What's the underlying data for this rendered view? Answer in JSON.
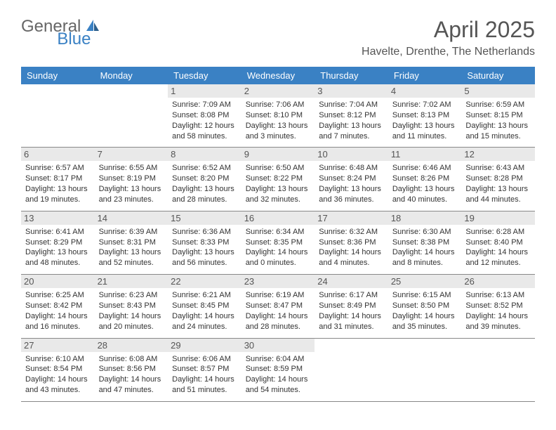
{
  "logo": {
    "general": "General",
    "blue": "Blue"
  },
  "title": "April 2025",
  "location": "Havelte, Drenthe, The Netherlands",
  "colors": {
    "header_bg": "#3a81c4",
    "header_fg": "#ffffff",
    "daynum_bg": "#e9e9e9",
    "text": "#333333",
    "title": "#555555",
    "row_border": "#888888"
  },
  "dow": [
    "Sunday",
    "Monday",
    "Tuesday",
    "Wednesday",
    "Thursday",
    "Friday",
    "Saturday"
  ],
  "weeks": [
    [
      {
        "n": "",
        "sr": "",
        "ss": "",
        "dl": ""
      },
      {
        "n": "",
        "sr": "",
        "ss": "",
        "dl": ""
      },
      {
        "n": "1",
        "sr": "Sunrise: 7:09 AM",
        "ss": "Sunset: 8:08 PM",
        "dl": "Daylight: 12 hours and 58 minutes."
      },
      {
        "n": "2",
        "sr": "Sunrise: 7:06 AM",
        "ss": "Sunset: 8:10 PM",
        "dl": "Daylight: 13 hours and 3 minutes."
      },
      {
        "n": "3",
        "sr": "Sunrise: 7:04 AM",
        "ss": "Sunset: 8:12 PM",
        "dl": "Daylight: 13 hours and 7 minutes."
      },
      {
        "n": "4",
        "sr": "Sunrise: 7:02 AM",
        "ss": "Sunset: 8:13 PM",
        "dl": "Daylight: 13 hours and 11 minutes."
      },
      {
        "n": "5",
        "sr": "Sunrise: 6:59 AM",
        "ss": "Sunset: 8:15 PM",
        "dl": "Daylight: 13 hours and 15 minutes."
      }
    ],
    [
      {
        "n": "6",
        "sr": "Sunrise: 6:57 AM",
        "ss": "Sunset: 8:17 PM",
        "dl": "Daylight: 13 hours and 19 minutes."
      },
      {
        "n": "7",
        "sr": "Sunrise: 6:55 AM",
        "ss": "Sunset: 8:19 PM",
        "dl": "Daylight: 13 hours and 23 minutes."
      },
      {
        "n": "8",
        "sr": "Sunrise: 6:52 AM",
        "ss": "Sunset: 8:20 PM",
        "dl": "Daylight: 13 hours and 28 minutes."
      },
      {
        "n": "9",
        "sr": "Sunrise: 6:50 AM",
        "ss": "Sunset: 8:22 PM",
        "dl": "Daylight: 13 hours and 32 minutes."
      },
      {
        "n": "10",
        "sr": "Sunrise: 6:48 AM",
        "ss": "Sunset: 8:24 PM",
        "dl": "Daylight: 13 hours and 36 minutes."
      },
      {
        "n": "11",
        "sr": "Sunrise: 6:46 AM",
        "ss": "Sunset: 8:26 PM",
        "dl": "Daylight: 13 hours and 40 minutes."
      },
      {
        "n": "12",
        "sr": "Sunrise: 6:43 AM",
        "ss": "Sunset: 8:28 PM",
        "dl": "Daylight: 13 hours and 44 minutes."
      }
    ],
    [
      {
        "n": "13",
        "sr": "Sunrise: 6:41 AM",
        "ss": "Sunset: 8:29 PM",
        "dl": "Daylight: 13 hours and 48 minutes."
      },
      {
        "n": "14",
        "sr": "Sunrise: 6:39 AM",
        "ss": "Sunset: 8:31 PM",
        "dl": "Daylight: 13 hours and 52 minutes."
      },
      {
        "n": "15",
        "sr": "Sunrise: 6:36 AM",
        "ss": "Sunset: 8:33 PM",
        "dl": "Daylight: 13 hours and 56 minutes."
      },
      {
        "n": "16",
        "sr": "Sunrise: 6:34 AM",
        "ss": "Sunset: 8:35 PM",
        "dl": "Daylight: 14 hours and 0 minutes."
      },
      {
        "n": "17",
        "sr": "Sunrise: 6:32 AM",
        "ss": "Sunset: 8:36 PM",
        "dl": "Daylight: 14 hours and 4 minutes."
      },
      {
        "n": "18",
        "sr": "Sunrise: 6:30 AM",
        "ss": "Sunset: 8:38 PM",
        "dl": "Daylight: 14 hours and 8 minutes."
      },
      {
        "n": "19",
        "sr": "Sunrise: 6:28 AM",
        "ss": "Sunset: 8:40 PM",
        "dl": "Daylight: 14 hours and 12 minutes."
      }
    ],
    [
      {
        "n": "20",
        "sr": "Sunrise: 6:25 AM",
        "ss": "Sunset: 8:42 PM",
        "dl": "Daylight: 14 hours and 16 minutes."
      },
      {
        "n": "21",
        "sr": "Sunrise: 6:23 AM",
        "ss": "Sunset: 8:43 PM",
        "dl": "Daylight: 14 hours and 20 minutes."
      },
      {
        "n": "22",
        "sr": "Sunrise: 6:21 AM",
        "ss": "Sunset: 8:45 PM",
        "dl": "Daylight: 14 hours and 24 minutes."
      },
      {
        "n": "23",
        "sr": "Sunrise: 6:19 AM",
        "ss": "Sunset: 8:47 PM",
        "dl": "Daylight: 14 hours and 28 minutes."
      },
      {
        "n": "24",
        "sr": "Sunrise: 6:17 AM",
        "ss": "Sunset: 8:49 PM",
        "dl": "Daylight: 14 hours and 31 minutes."
      },
      {
        "n": "25",
        "sr": "Sunrise: 6:15 AM",
        "ss": "Sunset: 8:50 PM",
        "dl": "Daylight: 14 hours and 35 minutes."
      },
      {
        "n": "26",
        "sr": "Sunrise: 6:13 AM",
        "ss": "Sunset: 8:52 PM",
        "dl": "Daylight: 14 hours and 39 minutes."
      }
    ],
    [
      {
        "n": "27",
        "sr": "Sunrise: 6:10 AM",
        "ss": "Sunset: 8:54 PM",
        "dl": "Daylight: 14 hours and 43 minutes."
      },
      {
        "n": "28",
        "sr": "Sunrise: 6:08 AM",
        "ss": "Sunset: 8:56 PM",
        "dl": "Daylight: 14 hours and 47 minutes."
      },
      {
        "n": "29",
        "sr": "Sunrise: 6:06 AM",
        "ss": "Sunset: 8:57 PM",
        "dl": "Daylight: 14 hours and 51 minutes."
      },
      {
        "n": "30",
        "sr": "Sunrise: 6:04 AM",
        "ss": "Sunset: 8:59 PM",
        "dl": "Daylight: 14 hours and 54 minutes."
      },
      {
        "n": "",
        "sr": "",
        "ss": "",
        "dl": ""
      },
      {
        "n": "",
        "sr": "",
        "ss": "",
        "dl": ""
      },
      {
        "n": "",
        "sr": "",
        "ss": "",
        "dl": ""
      }
    ]
  ]
}
